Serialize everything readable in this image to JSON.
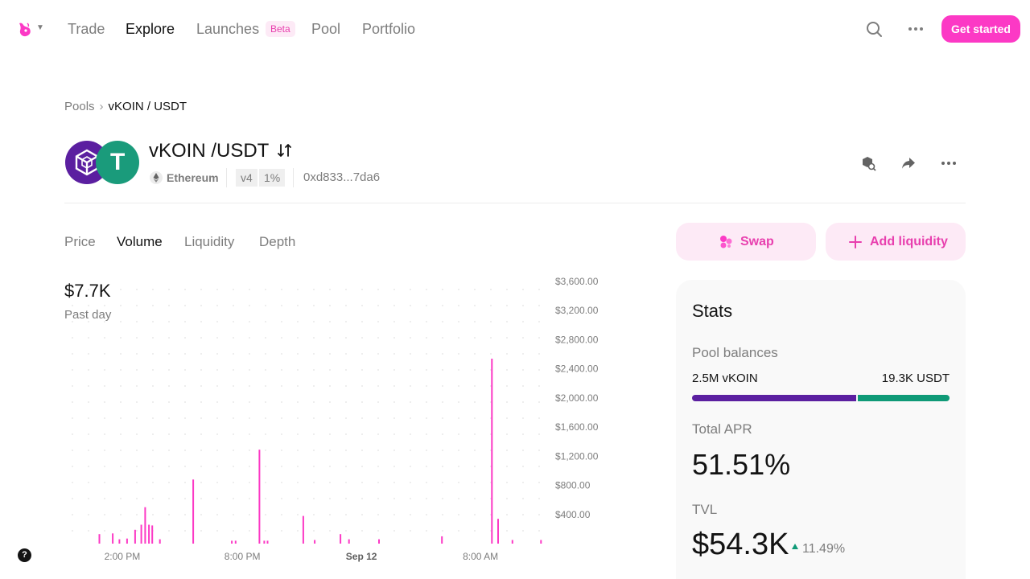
{
  "nav": {
    "links": [
      {
        "label": "Trade"
      },
      {
        "label": "Explore"
      },
      {
        "label": "Launches"
      },
      {
        "label": "Pool"
      },
      {
        "label": "Portfolio"
      }
    ],
    "beta_badge": "Beta",
    "get_started": "Get started",
    "accent": "#fc39c5"
  },
  "breadcrumb": {
    "root": "Pools",
    "current": "vKOIN / USDT"
  },
  "pool": {
    "title": "vKOIN /USDT",
    "chain": "Ethereum",
    "version": "v4",
    "fee": "1%",
    "address": "0xd833...7da6",
    "token_a_color": "#5b1fa0",
    "token_b_color": "#1a9b7b",
    "token_b_letter": "T"
  },
  "chart_tabs": [
    {
      "label": "Price"
    },
    {
      "label": "Volume"
    },
    {
      "label": "Liquidity"
    },
    {
      "label": "Depth"
    }
  ],
  "chart_header": {
    "value": "$7.7K",
    "period": "Past day"
  },
  "chart_data": {
    "type": "bar",
    "x_labels": [
      "2:00 PM",
      "8:00 PM",
      "Sep 12",
      "8:00 AM"
    ],
    "ylim": [
      0,
      3600
    ],
    "y_ticks": [
      "$400.00",
      "$800.00",
      "$1,200.00",
      "$1,600.00",
      "$2,000.00",
      "$2,400.00",
      "$2,800.00",
      "$3,200.00",
      "$3,600.00"
    ],
    "bar_color": "#fc39c5",
    "series": [
      {
        "values": [
          {
            "x": 0.06,
            "y": 130
          },
          {
            "x": 0.088,
            "y": 140
          },
          {
            "x": 0.102,
            "y": 60
          },
          {
            "x": 0.118,
            "y": 70
          },
          {
            "x": 0.135,
            "y": 190
          },
          {
            "x": 0.148,
            "y": 260
          },
          {
            "x": 0.156,
            "y": 500
          },
          {
            "x": 0.164,
            "y": 260
          },
          {
            "x": 0.171,
            "y": 250
          },
          {
            "x": 0.187,
            "y": 60
          },
          {
            "x": 0.257,
            "y": 880
          },
          {
            "x": 0.338,
            "y": 40
          },
          {
            "x": 0.346,
            "y": 40
          },
          {
            "x": 0.396,
            "y": 1290
          },
          {
            "x": 0.406,
            "y": 40
          },
          {
            "x": 0.413,
            "y": 40
          },
          {
            "x": 0.488,
            "y": 380
          },
          {
            "x": 0.512,
            "y": 50
          },
          {
            "x": 0.566,
            "y": 130
          },
          {
            "x": 0.584,
            "y": 60
          },
          {
            "x": 0.647,
            "y": 60
          },
          {
            "x": 0.779,
            "y": 100
          },
          {
            "x": 0.884,
            "y": 2540
          },
          {
            "x": 0.897,
            "y": 340
          },
          {
            "x": 0.927,
            "y": 50
          },
          {
            "x": 0.987,
            "y": 50
          }
        ]
      }
    ]
  },
  "actions": {
    "swap": "Swap",
    "add_liquidity": "Add liquidity"
  },
  "stats": {
    "title": "Stats",
    "pool_balances_label": "Pool balances",
    "balance_a": "2.5M vKOIN",
    "balance_b": "19.3K USDT",
    "balance_a_share": 0.64,
    "total_apr_label": "Total APR",
    "total_apr": "51.51%",
    "tvl_label": "TVL",
    "tvl": "$54.3K",
    "tvl_change": "11.49%",
    "positive_color": "#0f9a77"
  },
  "help": "?"
}
